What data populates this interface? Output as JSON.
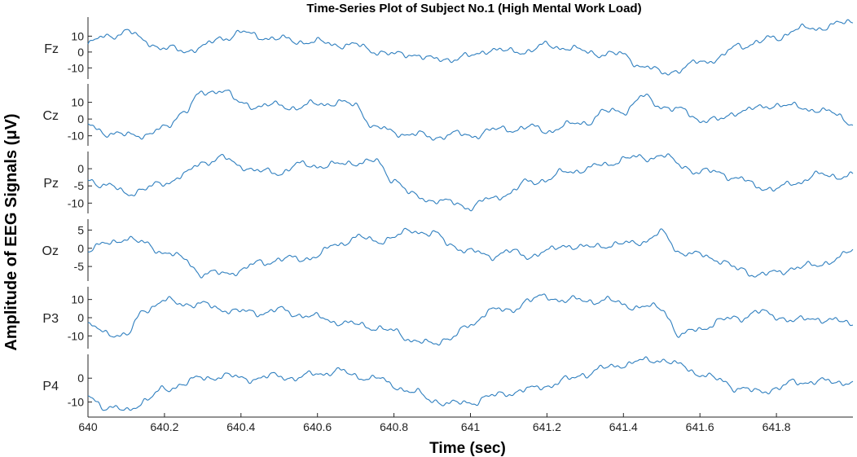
{
  "chart_data": {
    "type": "line",
    "title": "Time-Series Plot of Subject No.1 (High Mental Work Load)",
    "xlabel": "Time (sec)",
    "ylabel": "Amplitude of EEG Signals (μV)",
    "xlim": [
      640,
      642
    ],
    "x_ticks": [
      640,
      640.2,
      640.4,
      640.6,
      640.8,
      641,
      641.2,
      641.4,
      641.6,
      641.8
    ],
    "x_tick_labels": [
      "640",
      "640.2",
      "640.4",
      "640.6",
      "640.8",
      "641",
      "641.2",
      "641.4",
      "641.6",
      "641.8"
    ],
    "x_step": 0.05,
    "line_color": "#2f7fbf",
    "grid": false,
    "channels": [
      {
        "name": "Fz",
        "ylim": [
          -17,
          22
        ],
        "y_ticks": [
          -10,
          0,
          10
        ],
        "y_tick_labels": [
          "-10",
          "0",
          "10"
        ],
        "values": [
          5,
          10,
          13,
          7,
          2,
          1,
          3,
          9,
          12,
          10,
          8,
          7,
          6,
          5,
          4,
          1,
          -2,
          -1,
          -5,
          -4,
          -3,
          2,
          0,
          1,
          4,
          3,
          0,
          -1,
          -2,
          -9,
          -13,
          -11,
          -6,
          -4,
          4,
          6,
          9,
          14,
          15,
          17,
          19
        ]
      },
      {
        "name": "Cz",
        "ylim": [
          -16,
          21
        ],
        "y_ticks": [
          -10,
          0,
          10
        ],
        "y_tick_labels": [
          "-10",
          "0",
          "10"
        ],
        "values": [
          -4,
          -8,
          -10,
          -9,
          -6,
          5,
          15,
          18,
          9,
          8,
          8,
          7,
          9,
          10,
          8,
          -5,
          -8,
          -9,
          -11,
          -9,
          -10,
          -7,
          -6,
          -5,
          -7,
          -4,
          -2,
          4,
          5,
          13,
          8,
          5,
          0,
          -1,
          5,
          6,
          9,
          7,
          6,
          3,
          -2
        ]
      },
      {
        "name": "Pz",
        "ylim": [
          -13,
          5
        ],
        "y_ticks": [
          -10,
          -5,
          0
        ],
        "y_tick_labels": [
          "-10",
          "-5",
          "0"
        ],
        "values": [
          -3,
          -5,
          -7,
          -6,
          -4,
          -2,
          2,
          3,
          1,
          -1,
          -1,
          1,
          1,
          1,
          2,
          2,
          -3,
          -8,
          -9,
          -10,
          -11,
          -9,
          -7,
          -4,
          -3,
          -1,
          0,
          1,
          3,
          3,
          4,
          1,
          -1,
          -1,
          -3,
          -5,
          -6,
          -4,
          -2,
          -2,
          -2
        ]
      },
      {
        "name": "Oz",
        "ylim": [
          -9,
          8
        ],
        "y_ticks": [
          -5,
          0,
          5
        ],
        "y_tick_labels": [
          "-5",
          "0",
          "5"
        ],
        "values": [
          0,
          1,
          3,
          1,
          -1,
          -3,
          -7,
          -7,
          -6,
          -4,
          -3,
          -3,
          -2,
          1,
          3,
          2,
          3,
          5,
          4,
          1,
          -1,
          -2,
          -1,
          -2,
          -1,
          1,
          0,
          1,
          1,
          2,
          4,
          -1,
          -2,
          -3,
          -6,
          -7,
          -7,
          -5,
          -5,
          -3,
          -1
        ]
      },
      {
        "name": "P3",
        "ylim": [
          -17,
          17
        ],
        "y_ticks": [
          -10,
          0,
          10
        ],
        "y_tick_labels": [
          "-10",
          "0",
          "10"
        ],
        "values": [
          -5,
          -8,
          -10,
          5,
          9,
          8,
          7,
          5,
          3,
          3,
          4,
          2,
          0,
          -2,
          -4,
          -5,
          -8,
          -12,
          -15,
          -10,
          -5,
          5,
          3,
          10,
          11,
          10,
          9,
          10,
          7,
          6,
          5,
          -10,
          -6,
          -2,
          0,
          3,
          1,
          -2,
          0,
          -2,
          -3
        ]
      },
      {
        "name": "P4",
        "ylim": [
          -16,
          10
        ],
        "y_ticks": [
          -10,
          0
        ],
        "y_tick_labels": [
          "-10",
          "0"
        ],
        "values": [
          -8,
          -12,
          -14,
          -9,
          -5,
          -2,
          0,
          1,
          0,
          0,
          1,
          0,
          2,
          3,
          1,
          0,
          -3,
          -6,
          -9,
          -11,
          -10,
          -8,
          -6,
          -5,
          -3,
          -1,
          2,
          4,
          6,
          7,
          8,
          5,
          2,
          -1,
          -4,
          -6,
          -4,
          -2,
          -1,
          -2,
          -1
        ]
      }
    ]
  }
}
